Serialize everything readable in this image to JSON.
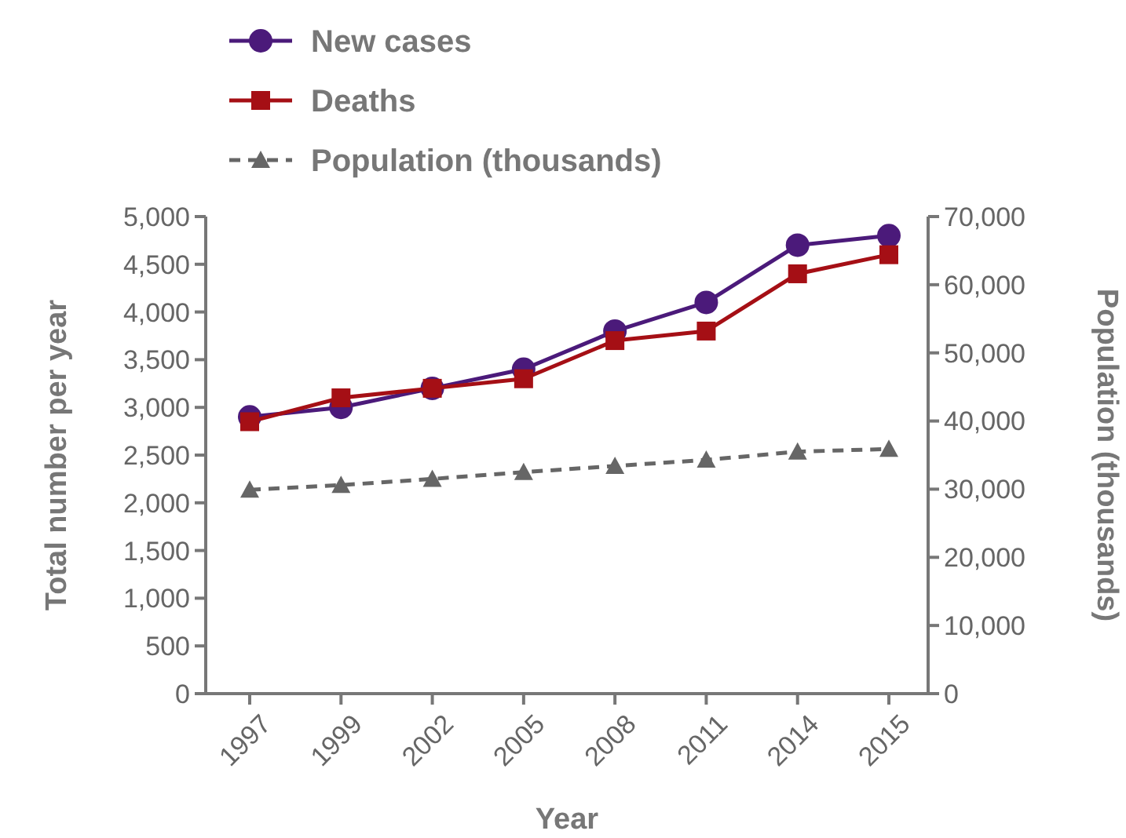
{
  "chart_data": {
    "type": "line",
    "xlabel": "Year",
    "ylabel": "Total number per year",
    "y2label": "Population (thousands)",
    "categories": [
      "1997",
      "1999",
      "2002",
      "2005",
      "2008",
      "2011",
      "2014",
      "2015"
    ],
    "series": [
      {
        "name": "New cases",
        "color": "#4b1a7a",
        "marker": "circle",
        "line_style": "solid",
        "values": [
          2900,
          3000,
          3200,
          3400,
          3800,
          4100,
          4700,
          4800
        ]
      },
      {
        "name": "Deaths",
        "color": "#a50f15",
        "marker": "square",
        "line_style": "solid",
        "values": [
          2850,
          3100,
          3200,
          3300,
          3700,
          3800,
          4400,
          4600
        ]
      },
      {
        "name": "Population (thousands)",
        "color": "#666666",
        "marker": "triangle",
        "line_style": "dashed",
        "axis": "y2",
        "values": [
          29900,
          30600,
          31500,
          32500,
          33400,
          34300,
          35500,
          35900
        ]
      }
    ],
    "ylim": [
      0,
      5000
    ],
    "yticks": [
      {
        "value": 0,
        "label": "0"
      },
      {
        "value": 500,
        "label": "500"
      },
      {
        "value": 1000,
        "label": "1,000"
      },
      {
        "value": 1500,
        "label": "1,500"
      },
      {
        "value": 2000,
        "label": "2,000"
      },
      {
        "value": 2500,
        "label": "2,500"
      },
      {
        "value": 3000,
        "label": "3,000"
      },
      {
        "value": 3500,
        "label": "3,500"
      },
      {
        "value": 4000,
        "label": "4,000"
      },
      {
        "value": 4500,
        "label": "4,500"
      },
      {
        "value": 5000,
        "label": "5,000"
      }
    ],
    "y2lim": [
      0,
      70000
    ],
    "y2ticks": [
      {
        "value": 0,
        "label": "0"
      },
      {
        "value": 10000,
        "label": "10,000"
      },
      {
        "value": 20000,
        "label": "20,000"
      },
      {
        "value": 30000,
        "label": "30,000"
      },
      {
        "value": 40000,
        "label": "40,000"
      },
      {
        "value": 50000,
        "label": "50,000"
      },
      {
        "value": 60000,
        "label": "60,000"
      },
      {
        "value": 70000,
        "label": "70,000"
      }
    ],
    "grid": false,
    "legend": "top"
  }
}
